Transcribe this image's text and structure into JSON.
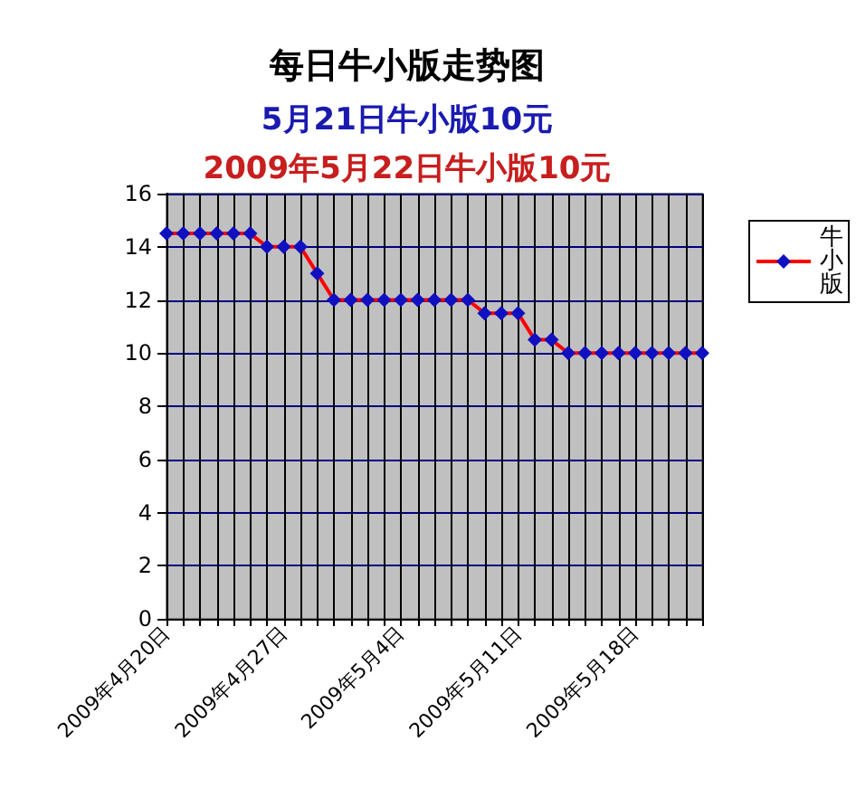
{
  "chart_data": {
    "type": "line",
    "title": "每日牛小版走势图",
    "subtitle": "5月21日牛小版10元",
    "annotations": [
      "2009年5月22日牛小版10元"
    ],
    "categories": [
      "2009年4月20日",
      null,
      null,
      null,
      null,
      null,
      null,
      "2009年4月27日",
      null,
      null,
      null,
      null,
      null,
      null,
      "2009年5月4日",
      null,
      null,
      null,
      null,
      null,
      null,
      "2009年5月11日",
      null,
      null,
      null,
      null,
      null,
      null,
      "2009年5月18日",
      null,
      null,
      null,
      null
    ],
    "series": [
      {
        "name": "牛小版",
        "color": "#ff0000",
        "values": [
          14.5,
          14.5,
          14.5,
          14.5,
          14.5,
          14.5,
          14,
          14,
          14,
          13,
          12,
          12,
          12,
          12,
          12,
          12,
          12,
          12,
          12,
          11.5,
          11.5,
          11.5,
          10.5,
          10.5,
          10,
          10,
          10,
          10,
          10,
          10,
          10,
          10,
          10
        ]
      }
    ],
    "ylim": [
      0,
      16
    ],
    "yticks": [
      0,
      2,
      4,
      6,
      8,
      10,
      12,
      14,
      16
    ],
    "grid": true,
    "legend": "right",
    "marker": "diamond",
    "line_style": "solid"
  }
}
